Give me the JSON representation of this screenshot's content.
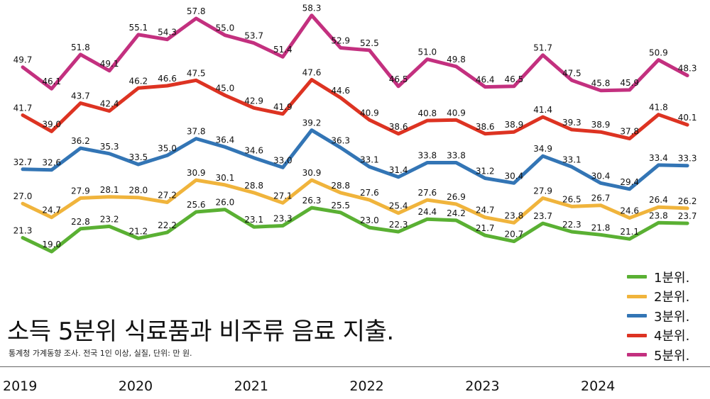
{
  "title": "소득 5분위 식료품과 비주류 음료 지출.",
  "subtitle": "통계청 가계동향 조사. 전국 1인 이상, 실질, 단위: 만 원.",
  "chart_data": {
    "type": "line",
    "x": [
      "2019 Q1",
      "2019 Q2",
      "2019 Q3",
      "2019 Q4",
      "2020 Q1",
      "2020 Q2",
      "2020 Q3",
      "2020 Q4",
      "2021 Q1",
      "2021 Q2",
      "2021 Q3",
      "2021 Q4",
      "2022 Q1",
      "2022 Q2",
      "2022 Q3",
      "2022 Q4",
      "2023 Q1",
      "2023 Q2",
      "2023 Q3",
      "2023 Q4",
      "2024 Q1",
      "2024 Q2",
      "2024 Q3",
      "2024 Q4"
    ],
    "x_tick_labels": [
      "2019",
      "2020",
      "2021",
      "2022",
      "2023",
      "2024"
    ],
    "grid": false,
    "legend_position": "bottom-right",
    "series": [
      {
        "name": "1분위.",
        "color": "#5ab033",
        "values": [
          21.3,
          19.0,
          22.8,
          23.2,
          21.2,
          22.2,
          25.6,
          26.0,
          23.1,
          23.3,
          26.3,
          25.5,
          23.0,
          22.3,
          24.4,
          24.2,
          21.7,
          20.7,
          23.7,
          22.3,
          21.8,
          21.1,
          23.8,
          23.7
        ]
      },
      {
        "name": "2분위.",
        "color": "#f0b43c",
        "values": [
          27.0,
          24.7,
          27.9,
          28.1,
          28.0,
          27.2,
          30.9,
          30.1,
          28.8,
          27.1,
          30.9,
          28.8,
          27.6,
          25.4,
          27.6,
          26.9,
          24.7,
          23.8,
          27.9,
          26.5,
          26.7,
          24.6,
          26.4,
          26.2
        ]
      },
      {
        "name": "3분위.",
        "color": "#3375b5",
        "values": [
          32.7,
          32.6,
          36.2,
          35.3,
          33.5,
          35.0,
          37.8,
          36.4,
          34.6,
          33.0,
          39.2,
          36.3,
          33.1,
          31.4,
          33.8,
          33.8,
          31.2,
          30.4,
          34.9,
          33.1,
          30.4,
          29.4,
          33.4,
          33.3
        ]
      },
      {
        "name": "4분위.",
        "color": "#dd3322",
        "values": [
          41.7,
          39.0,
          43.7,
          42.4,
          46.2,
          46.6,
          47.5,
          45.0,
          42.9,
          41.9,
          47.6,
          44.6,
          40.9,
          38.6,
          40.8,
          40.9,
          38.6,
          38.9,
          41.4,
          39.3,
          38.9,
          37.8,
          41.8,
          40.1
        ]
      },
      {
        "name": "5분위.",
        "color": "#c3307f",
        "values": [
          49.7,
          46.1,
          51.8,
          49.1,
          55.1,
          54.3,
          57.8,
          55.0,
          53.7,
          51.4,
          58.3,
          52.9,
          52.5,
          46.5,
          51.0,
          49.8,
          46.4,
          46.5,
          51.7,
          47.5,
          45.8,
          45.9,
          50.9,
          48.3
        ]
      }
    ]
  }
}
